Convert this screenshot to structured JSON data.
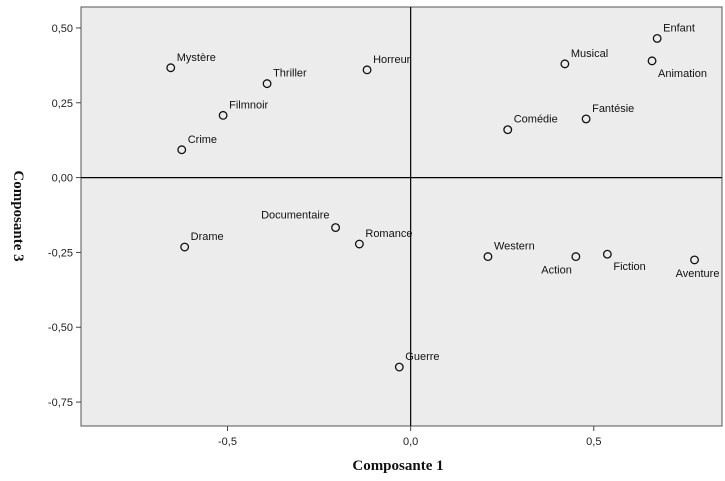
{
  "chart_data": {
    "type": "scatter",
    "xlabel": "Composante 1",
    "ylabel": "Composante 3",
    "xlim": [
      -0.9,
      0.85
    ],
    "ylim": [
      -0.83,
      0.57
    ],
    "xticks": [
      -0.5,
      0.0,
      0.5
    ],
    "xtick_labels": [
      "-0,5",
      "0,0",
      "0,5"
    ],
    "yticks": [
      0.5,
      0.25,
      0.0,
      -0.25,
      -0.5,
      -0.75
    ],
    "ytick_labels": [
      "0,50",
      "0,25",
      "0,00",
      "-0,25",
      "-0,50",
      "-0,75"
    ],
    "reference_lines": {
      "x": 0,
      "y": 0
    },
    "grid": false,
    "plot_background": "#ececec",
    "points": [
      {
        "label": "Mystère",
        "x": -0.655,
        "y": 0.367,
        "anchor": "upper-right"
      },
      {
        "label": "Thriller",
        "x": -0.392,
        "y": 0.314,
        "anchor": "upper-right"
      },
      {
        "label": "Horreur",
        "x": -0.119,
        "y": 0.36,
        "anchor": "upper-right"
      },
      {
        "label": "Filmnoir",
        "x": -0.512,
        "y": 0.208,
        "anchor": "upper-right"
      },
      {
        "label": "Crime",
        "x": -0.625,
        "y": 0.093,
        "anchor": "upper-right"
      },
      {
        "label": "Musical",
        "x": 0.421,
        "y": 0.38,
        "anchor": "upper-right"
      },
      {
        "label": "Enfant",
        "x": 0.673,
        "y": 0.465,
        "anchor": "upper-right"
      },
      {
        "label": "Animation",
        "x": 0.659,
        "y": 0.39,
        "anchor": "lower-right"
      },
      {
        "label": "Fantésie",
        "x": 0.479,
        "y": 0.196,
        "anchor": "upper-right"
      },
      {
        "label": "Comédie",
        "x": 0.265,
        "y": 0.16,
        "anchor": "upper-right"
      },
      {
        "label": "Documentaire",
        "x": -0.205,
        "y": -0.167,
        "anchor": "upper-left"
      },
      {
        "label": "Romance",
        "x": -0.14,
        "y": -0.222,
        "anchor": "upper-right"
      },
      {
        "label": "Drame",
        "x": -0.617,
        "y": -0.232,
        "anchor": "upper-right"
      },
      {
        "label": "Western",
        "x": 0.211,
        "y": -0.264,
        "anchor": "upper-right"
      },
      {
        "label": "Action",
        "x": 0.451,
        "y": -0.264,
        "anchor": "lower-left"
      },
      {
        "label": "Fiction",
        "x": 0.537,
        "y": -0.256,
        "anchor": "lower-right"
      },
      {
        "label": "Aventure",
        "x": 0.775,
        "y": -0.275,
        "anchor": "lower-left-center"
      },
      {
        "label": "Guerre",
        "x": -0.031,
        "y": -0.633,
        "anchor": "upper-right"
      }
    ]
  }
}
